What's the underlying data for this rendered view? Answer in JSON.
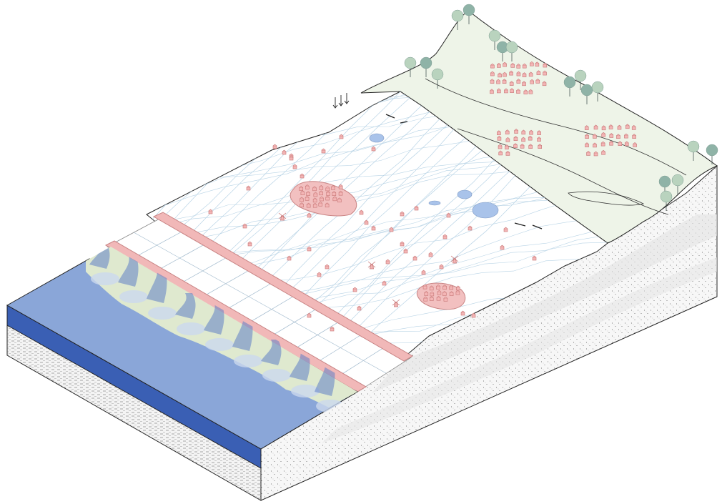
{
  "colors": {
    "background": "#ffffff",
    "sea_top": "#8aa6d8",
    "sea_side": "#3a5fb4",
    "sea_dark_shallows": "#5f80c6",
    "shallow_light": "#cbd8ee",
    "salt_marsh": "#dfe9cf",
    "polder_land": "#ffffff",
    "ditch_lines": "#b9d4e6",
    "lake_water": "#a9c3ea",
    "dike_fill": "#f1b8b8",
    "dike_stroke": "#c98484",
    "settlement_fill": "#f2c0c0",
    "building_fill": "#f4b6b6",
    "building_stroke": "#c67676",
    "upland": "#eef4e8",
    "soil_side": "#f2f2f2",
    "soil_stipple": "#444444",
    "tree_light": "#b9d3be",
    "tree_dark": "#8fb3a7",
    "outline": "#222222"
  },
  "icons": {
    "building": "building-icon",
    "windmill": "windmill-icon",
    "tree": "tree-icon",
    "rain_arrows": "rain-arrow-icon"
  }
}
